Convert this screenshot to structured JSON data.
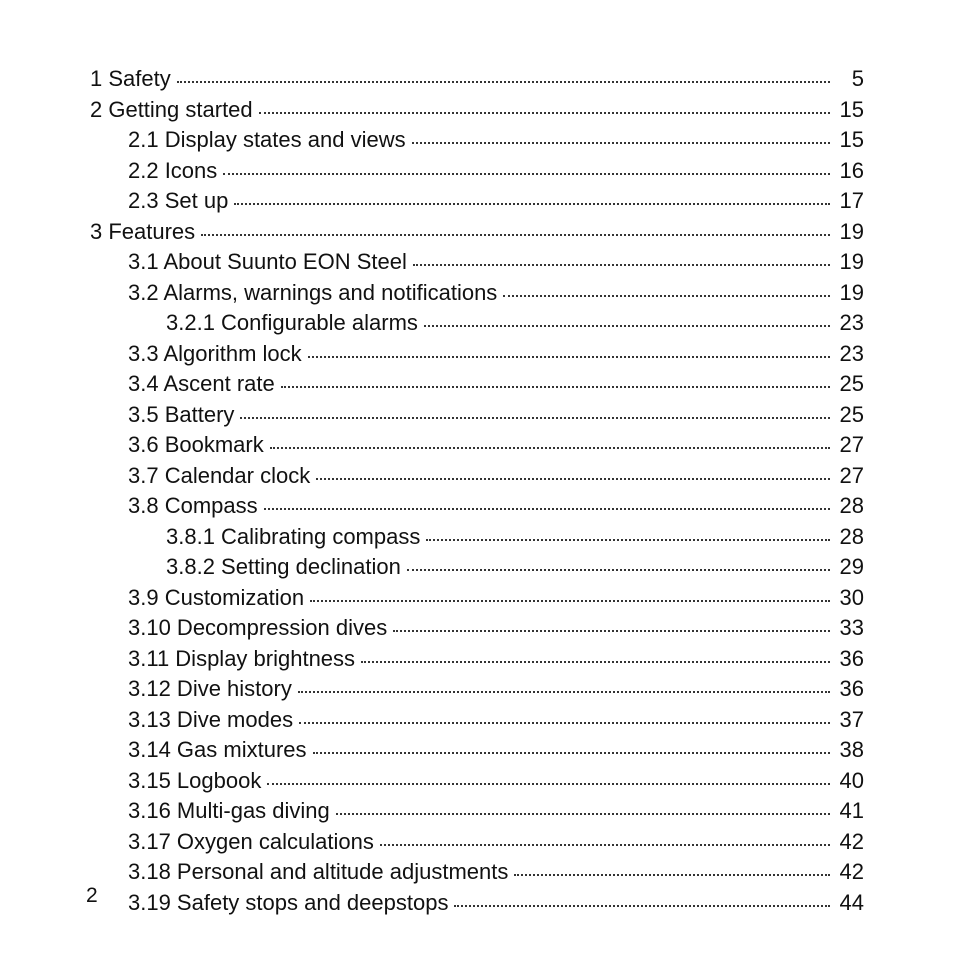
{
  "page_number": "2",
  "text_color": "#111111",
  "background_color": "#ffffff",
  "font_size_pt": 16,
  "toc": [
    {
      "level": 0,
      "title": "1 Safety",
      "page": "5"
    },
    {
      "level": 0,
      "title": "2 Getting started",
      "page": "15"
    },
    {
      "level": 1,
      "title": "2.1 Display states and views",
      "page": "15"
    },
    {
      "level": 1,
      "title": "2.2 Icons",
      "page": "16"
    },
    {
      "level": 1,
      "title": "2.3 Set up",
      "page": "17"
    },
    {
      "level": 0,
      "title": "3 Features",
      "page": "19"
    },
    {
      "level": 1,
      "title": "3.1 About Suunto EON Steel",
      "page": "19"
    },
    {
      "level": 1,
      "title": "3.2 Alarms, warnings and notifications",
      "page": "19"
    },
    {
      "level": 2,
      "title": "3.2.1 Configurable alarms",
      "page": "23"
    },
    {
      "level": 1,
      "title": "3.3 Algorithm lock",
      "page": "23"
    },
    {
      "level": 1,
      "title": "3.4 Ascent rate",
      "page": "25"
    },
    {
      "level": 1,
      "title": "3.5 Battery",
      "page": "25"
    },
    {
      "level": 1,
      "title": "3.6 Bookmark",
      "page": "27"
    },
    {
      "level": 1,
      "title": "3.7 Calendar clock",
      "page": "27"
    },
    {
      "level": 1,
      "title": "3.8 Compass",
      "page": "28"
    },
    {
      "level": 2,
      "title": "3.8.1 Calibrating compass",
      "page": "28"
    },
    {
      "level": 2,
      "title": "3.8.2 Setting declination",
      "page": "29"
    },
    {
      "level": 1,
      "title": "3.9 Customization",
      "page": "30"
    },
    {
      "level": 1,
      "title": "3.10 Decompression dives",
      "page": "33"
    },
    {
      "level": 1,
      "title": "3.11 Display brightness",
      "page": "36"
    },
    {
      "level": 1,
      "title": "3.12 Dive history",
      "page": "36"
    },
    {
      "level": 1,
      "title": "3.13 Dive modes",
      "page": "37"
    },
    {
      "level": 1,
      "title": "3.14 Gas mixtures",
      "page": "38"
    },
    {
      "level": 1,
      "title": "3.15 Logbook",
      "page": "40"
    },
    {
      "level": 1,
      "title": "3.16 Multi-gas diving",
      "page": "41"
    },
    {
      "level": 1,
      "title": "3.17 Oxygen calculations",
      "page": "42"
    },
    {
      "level": 1,
      "title": "3.18 Personal and altitude adjustments",
      "page": "42"
    },
    {
      "level": 1,
      "title": "3.19 Safety stops and deepstops",
      "page": "44"
    }
  ]
}
